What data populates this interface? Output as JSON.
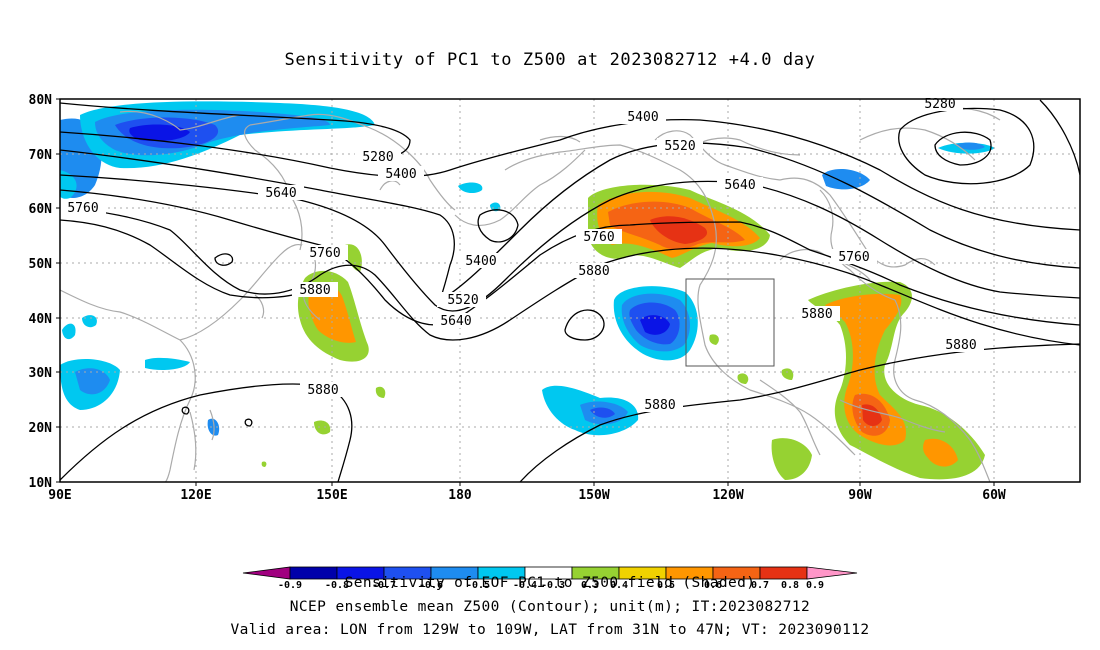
{
  "title": "Sensitivity of PC1 to Z500 at 2023082712 +4.0 day",
  "lat_labels": [
    "80N",
    "70N",
    "60N",
    "50N",
    "40N",
    "30N",
    "20N",
    "10N"
  ],
  "lon_labels": [
    "90E",
    "120E",
    "150E",
    "180",
    "150W",
    "120W",
    "90W",
    "60W"
  ],
  "contour_labels": [
    "5280",
    "5400",
    "5520",
    "5640",
    "5760",
    "5880",
    "5280",
    "5400",
    "5520",
    "5640",
    "5760",
    "5880",
    "5760",
    "5880",
    "5400",
    "5520",
    "5640",
    "5760",
    "5880",
    "5880",
    "5880",
    "5880",
    "5760",
    "5640",
    "5400",
    "5520"
  ],
  "colorbar": {
    "tick_labels": [
      "-0.9",
      "-0.8",
      "-0.7",
      "-0.6",
      "-0.5",
      "-0.4",
      "-0.3",
      "0.3",
      "0.4",
      "0.5",
      "0.6",
      "0.7",
      "0.8",
      "0.9"
    ],
    "colors": [
      "#a0007f",
      "#0000aa",
      "#0a14e6",
      "#1e50f0",
      "#1e8cf0",
      "#00c8f0",
      "#ffffff",
      "#96d232",
      "#f0d200",
      "#ff9600",
      "#f56414",
      "#e63214",
      "#ff0000",
      "#ff96c8"
    ]
  },
  "captions": [
    "Sensitivity of EOF PC1 to Z500 field (Shaded)",
    "NCEP ensemble mean Z500 (Contour); unit(m); IT:2023082712",
    "Valid area: LON from 129W to 109W, LAT from 31N to 47N; VT: 2023090112"
  ],
  "colors": {
    "coast": "#aaaaaa",
    "grid": "#aaaaaa",
    "contour": "#000000"
  }
}
